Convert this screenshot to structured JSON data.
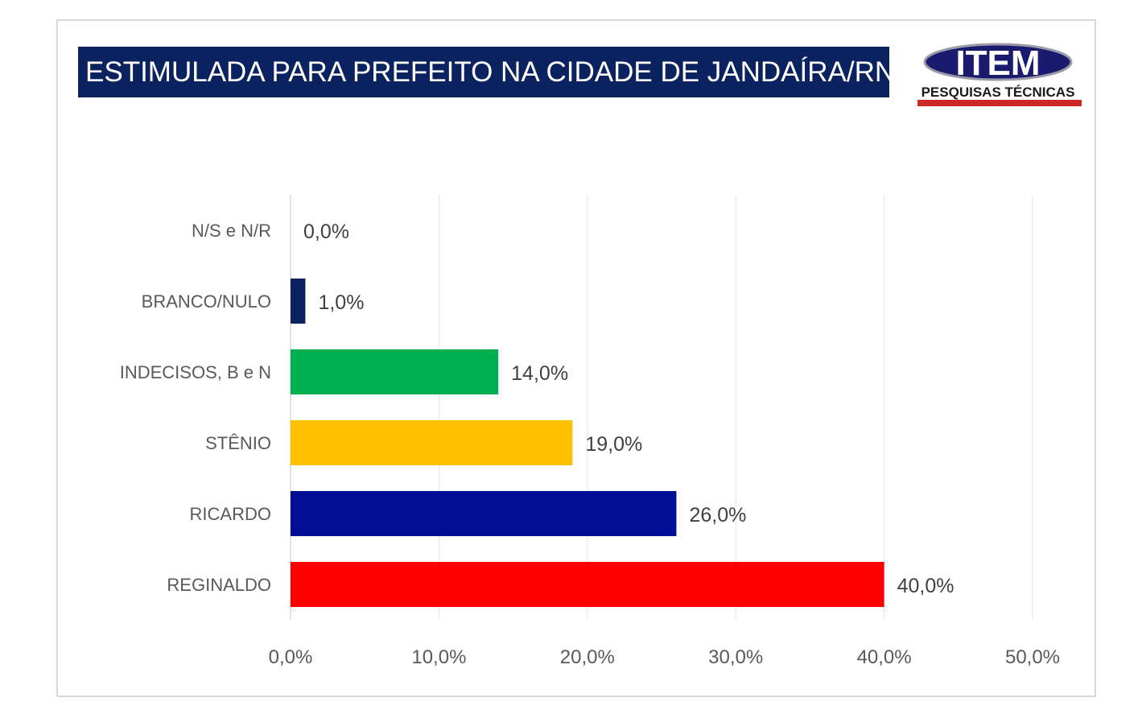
{
  "header": {
    "title": "ESTIMULADA PARA PREFEITO NA CIDADE DE JANDAÍRA/RN",
    "logo_text": "ITEM",
    "logo_subtext": "PESQUISAS TÉCNICAS"
  },
  "chart_data": {
    "type": "bar",
    "orientation": "horizontal",
    "title": "ESTIMULADA PARA PREFEITO NA CIDADE DE JANDAÍRA/RN",
    "categories": [
      "N/S e N/R",
      "BRANCO/NULO",
      "INDECISOS, B e N",
      "STÊNIO",
      "RICARDO",
      "REGINALDO"
    ],
    "values": [
      0.0,
      1.0,
      14.0,
      19.0,
      26.0,
      40.0
    ],
    "data_labels": [
      "0,0%",
      "1,0%",
      "14,0%",
      "19,0%",
      "26,0%",
      "40,0%"
    ],
    "colors": [
      "#0b2260",
      "#0b2260",
      "#00b050",
      "#ffc000",
      "#000e96",
      "#ff0000"
    ],
    "xlim": [
      0,
      50
    ],
    "xticks": [
      "0,0%",
      "10,0%",
      "20,0%",
      "30,0%",
      "40,0%",
      "50,0%"
    ],
    "xlabel": "",
    "ylabel": "",
    "grid": "vertical",
    "legend": "none"
  },
  "colors": {
    "title_bg": "#0b2260",
    "title_text": "#ffffff",
    "logo_accent": "#cc2a2a",
    "logo_navy": "#1a1a6e"
  }
}
